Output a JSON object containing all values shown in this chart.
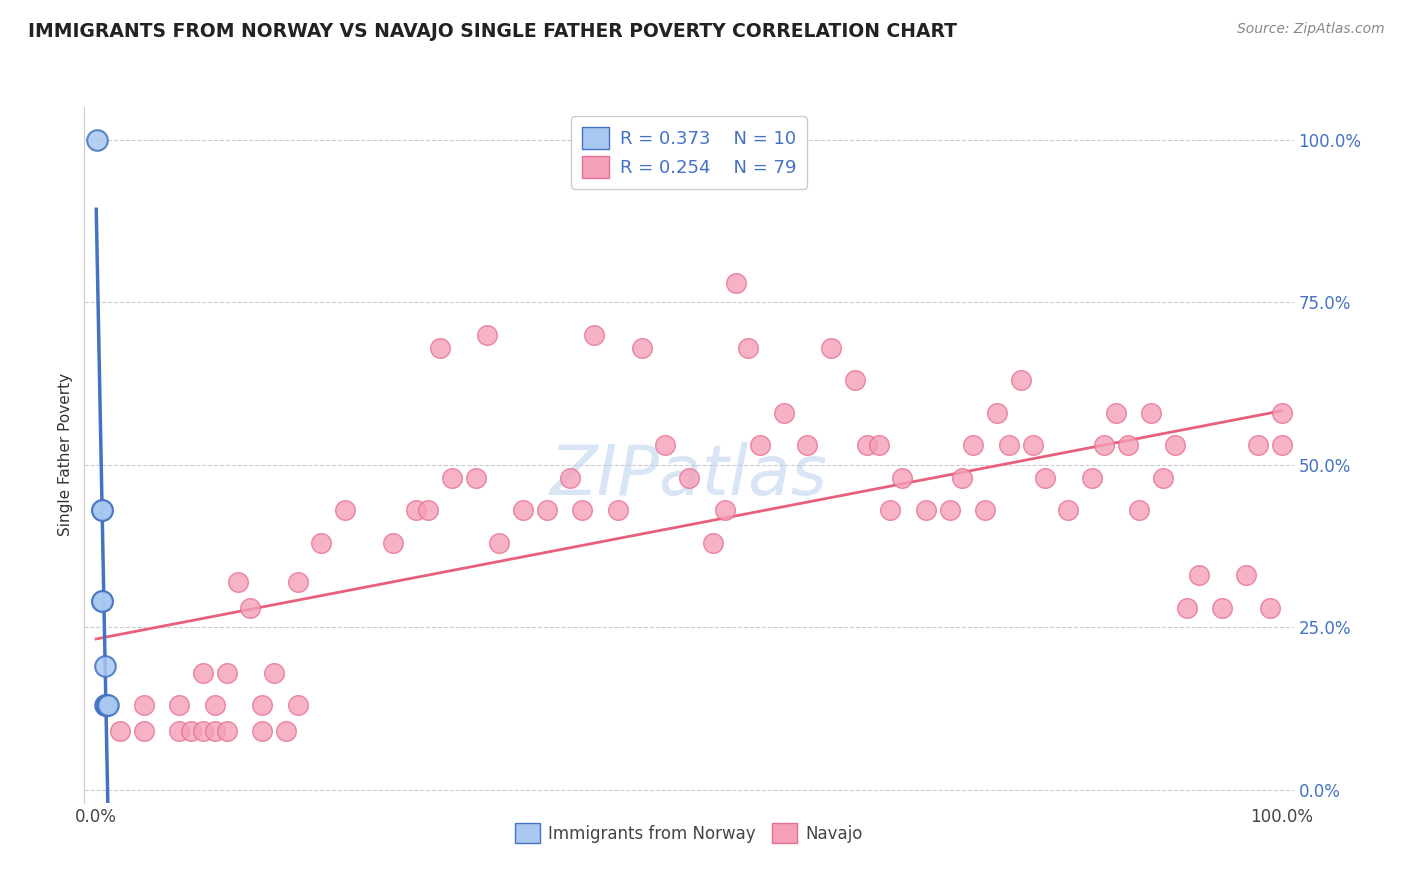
{
  "title": "IMMIGRANTS FROM NORWAY VS NAVAJO SINGLE FATHER POVERTY CORRELATION CHART",
  "source": "Source: ZipAtlas.com",
  "ylabel": "Single Father Poverty",
  "legend_label1": "Immigrants from Norway",
  "legend_label2": "Navajo",
  "r1": 0.373,
  "n1": 10,
  "r2": 0.254,
  "n2": 79,
  "color1": "#A8C8F0",
  "color2": "#F4A0B8",
  "line1_color": "#4472C4",
  "line2_color": "#E8607A",
  "watermark": "ZIPatlas",
  "norway_x": [
    0.001,
    0.005,
    0.005,
    0.005,
    0.005,
    0.007,
    0.007,
    0.008,
    0.009,
    0.01
  ],
  "norway_y": [
    1.0,
    0.43,
    0.43,
    0.29,
    0.29,
    0.19,
    0.13,
    0.13,
    0.13,
    0.13
  ],
  "navajo_x": [
    0.02,
    0.04,
    0.04,
    0.07,
    0.07,
    0.08,
    0.09,
    0.09,
    0.1,
    0.1,
    0.11,
    0.11,
    0.12,
    0.13,
    0.14,
    0.14,
    0.15,
    0.16,
    0.17,
    0.17,
    0.19,
    0.21,
    0.25,
    0.27,
    0.28,
    0.29,
    0.3,
    0.32,
    0.33,
    0.34,
    0.36,
    0.38,
    0.4,
    0.41,
    0.42,
    0.44,
    0.46,
    0.48,
    0.5,
    0.52,
    0.53,
    0.54,
    0.55,
    0.56,
    0.58,
    0.6,
    0.62,
    0.64,
    0.65,
    0.66,
    0.67,
    0.68,
    0.7,
    0.72,
    0.73,
    0.74,
    0.75,
    0.76,
    0.77,
    0.78,
    0.79,
    0.8,
    0.82,
    0.84,
    0.85,
    0.86,
    0.87,
    0.88,
    0.89,
    0.9,
    0.91,
    0.92,
    0.93,
    0.95,
    0.97,
    0.98,
    0.99,
    1.0,
    1.0
  ],
  "navajo_y": [
    0.09,
    0.13,
    0.09,
    0.13,
    0.09,
    0.09,
    0.18,
    0.09,
    0.13,
    0.09,
    0.18,
    0.09,
    0.32,
    0.28,
    0.09,
    0.13,
    0.18,
    0.09,
    0.13,
    0.32,
    0.38,
    0.43,
    0.38,
    0.43,
    0.43,
    0.68,
    0.48,
    0.48,
    0.7,
    0.38,
    0.43,
    0.43,
    0.48,
    0.43,
    0.7,
    0.43,
    0.68,
    0.53,
    0.48,
    0.38,
    0.43,
    0.78,
    0.68,
    0.53,
    0.58,
    0.53,
    0.68,
    0.63,
    0.53,
    0.53,
    0.43,
    0.48,
    0.43,
    0.43,
    0.48,
    0.53,
    0.43,
    0.58,
    0.53,
    0.63,
    0.53,
    0.48,
    0.43,
    0.48,
    0.53,
    0.58,
    0.53,
    0.43,
    0.58,
    0.48,
    0.53,
    0.28,
    0.33,
    0.28,
    0.33,
    0.53,
    0.28,
    0.53,
    0.58
  ],
  "xlim": [
    0.0,
    1.0
  ],
  "ylim": [
    0.0,
    1.0
  ],
  "xtick_labels": [
    "0.0%",
    "100.0%"
  ],
  "ytick_labels": [
    "0.0%",
    "25.0%",
    "50.0%",
    "75.0%",
    "100.0%"
  ],
  "ytick_values": [
    0.0,
    0.25,
    0.5,
    0.75,
    1.0
  ]
}
